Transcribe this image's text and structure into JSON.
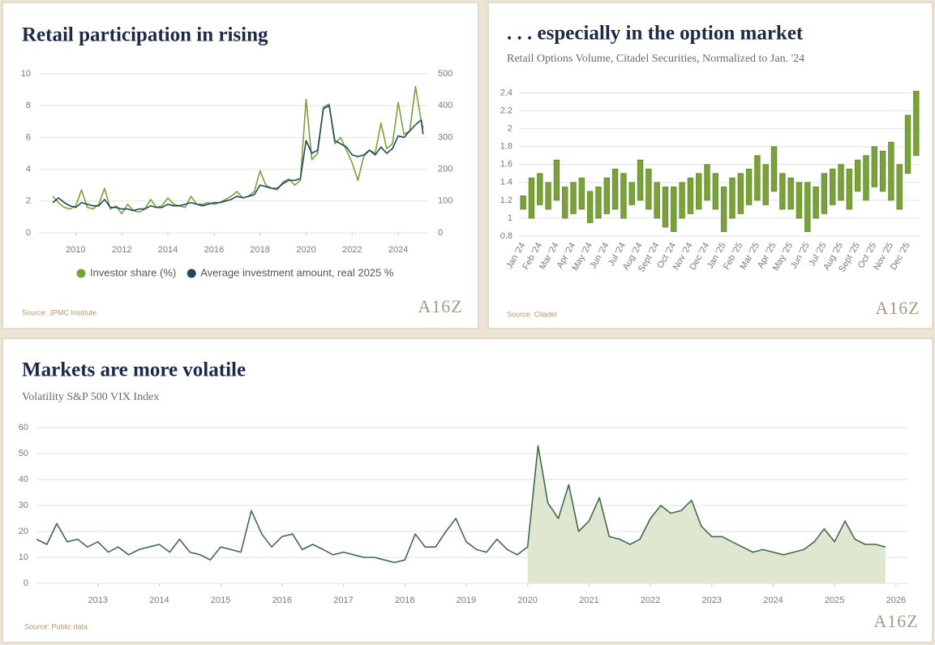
{
  "chart_data": [
    {
      "type": "line",
      "title": "Retail participation in rising",
      "source": "Source: JPMC Institute",
      "logo": "A16Z",
      "x": [
        2009,
        2009.25,
        2009.5,
        2009.75,
        2010,
        2010.25,
        2010.5,
        2010.75,
        2011,
        2011.25,
        2011.5,
        2011.75,
        2012,
        2012.25,
        2012.5,
        2012.75,
        2013,
        2013.25,
        2013.5,
        2013.75,
        2014,
        2014.25,
        2014.5,
        2014.75,
        2015,
        2015.25,
        2015.5,
        2015.75,
        2016,
        2016.25,
        2016.5,
        2016.75,
        2017,
        2017.25,
        2017.5,
        2017.75,
        2018,
        2018.25,
        2018.5,
        2018.75,
        2019,
        2019.25,
        2019.5,
        2019.75,
        2020,
        2020.25,
        2020.5,
        2020.75,
        2021,
        2021.25,
        2021.5,
        2021.75,
        2022,
        2022.25,
        2022.5,
        2022.75,
        2023,
        2023.25,
        2023.5,
        2023.75,
        2024,
        2024.25,
        2024.5,
        2024.75,
        2025,
        2025.08
      ],
      "series": [
        {
          "name": "Investor share (%)",
          "color": "#7ba13a",
          "values": [
            2.3,
            1.9,
            1.6,
            1.5,
            1.7,
            2.7,
            1.6,
            1.5,
            1.8,
            2.8,
            1.5,
            1.7,
            1.2,
            1.8,
            1.4,
            1.3,
            1.5,
            2.1,
            1.6,
            1.7,
            2.2,
            1.8,
            1.7,
            1.6,
            2.3,
            1.8,
            1.8,
            1.9,
            1.8,
            1.9,
            2.1,
            2.3,
            2.6,
            2.2,
            2.3,
            2.6,
            3.9,
            3.0,
            2.8,
            2.7,
            3.2,
            3.4,
            3.0,
            3.3,
            8.4,
            4.6,
            5.0,
            7.9,
            8.1,
            5.6,
            6.0,
            5.2,
            4.4,
            3.3,
            4.8,
            5.2,
            5.0,
            6.9,
            5.3,
            5.6,
            8.2,
            6.2,
            6.4,
            9.2,
            7.0,
            6.6
          ]
        },
        {
          "name": "Average investment amount, real 2025 %",
          "color": "#1f4a5e",
          "axis": "y2",
          "values": [
            95,
            110,
            95,
            85,
            80,
            95,
            90,
            85,
            85,
            105,
            80,
            80,
            75,
            75,
            70,
            75,
            75,
            85,
            80,
            80,
            90,
            85,
            85,
            90,
            95,
            90,
            85,
            90,
            95,
            95,
            100,
            105,
            115,
            110,
            115,
            120,
            150,
            145,
            140,
            140,
            155,
            165,
            165,
            170,
            290,
            250,
            260,
            390,
            400,
            290,
            280,
            270,
            245,
            240,
            245,
            260,
            245,
            270,
            250,
            265,
            305,
            300,
            320,
            340,
            355,
            310
          ]
        }
      ],
      "xlim": [
        2008.4,
        2025.3
      ],
      "xticks": [
        2010,
        2012,
        2014,
        2016,
        2018,
        2020,
        2022,
        2024
      ],
      "ylim": [
        0,
        10
      ],
      "yticks": [
        0,
        2,
        4,
        6,
        8,
        10
      ],
      "y2lim": [
        0,
        500
      ],
      "y2ticks": [
        0,
        100,
        200,
        300,
        400,
        500
      ],
      "grid": true,
      "legend": "bottom"
    },
    {
      "type": "range_bar",
      "title": ". . . especially in the option market",
      "subtitle": "Retail Options Volume, Citadel Securities, Normalized to Jan. '24",
      "source": "Source: Citadel",
      "logo": "A16Z",
      "categories": [
        "Jan '24",
        null,
        "Feb '24",
        null,
        "Mar '24",
        null,
        "Apr '24",
        null,
        "May '24",
        null,
        "Jun '24",
        null,
        "Jul '24",
        null,
        "Aug '24",
        null,
        "Sept '24",
        null,
        "Oct '24",
        null,
        "Nov '24",
        null,
        "Dec '24",
        null,
        "Jan '25",
        null,
        "Feb '25",
        null,
        "Mar '25",
        null,
        "Apr '25",
        null,
        "May '25",
        null,
        "Jun '25",
        null,
        "Jul '25",
        null,
        "Aug '25",
        null,
        "Sept '25",
        null,
        "Oct '25",
        null,
        "Nov '25",
        null,
        "Dec '25",
        null
      ],
      "low": [
        1.1,
        1.0,
        1.15,
        1.1,
        1.2,
        1.0,
        1.05,
        1.1,
        0.95,
        1.0,
        1.05,
        1.1,
        1.0,
        1.15,
        1.2,
        1.1,
        1.0,
        0.9,
        0.85,
        1.0,
        1.05,
        1.1,
        1.2,
        1.1,
        0.85,
        1.0,
        1.05,
        1.15,
        1.2,
        1.15,
        1.3,
        1.1,
        1.1,
        1.0,
        0.85,
        1.0,
        1.05,
        1.15,
        1.2,
        1.1,
        1.3,
        1.2,
        1.35,
        1.3,
        1.2,
        1.1,
        1.5,
        1.7
      ],
      "high": [
        1.25,
        1.45,
        1.5,
        1.4,
        1.65,
        1.35,
        1.4,
        1.45,
        1.3,
        1.35,
        1.45,
        1.55,
        1.5,
        1.4,
        1.65,
        1.55,
        1.4,
        1.35,
        1.35,
        1.4,
        1.45,
        1.5,
        1.6,
        1.5,
        1.35,
        1.45,
        1.5,
        1.55,
        1.7,
        1.6,
        1.8,
        1.5,
        1.45,
        1.4,
        1.4,
        1.35,
        1.5,
        1.55,
        1.6,
        1.55,
        1.65,
        1.7,
        1.8,
        1.75,
        1.85,
        1.6,
        2.15,
        2.42
      ],
      "color": "#7ba13a",
      "ylim": [
        0.8,
        2.45
      ],
      "yticks": [
        0.8,
        1,
        1.2,
        1.4,
        1.6,
        1.8,
        2,
        2.2,
        2.4
      ],
      "grid": true
    },
    {
      "type": "line",
      "title": "Markets are more volatile",
      "subtitle": "Volatility S&P 500 VIX Index",
      "source": "Source: Public data",
      "logo": "A16Z",
      "x": [
        2012,
        2012.17,
        2012.33,
        2012.5,
        2012.67,
        2012.83,
        2013,
        2013.17,
        2013.33,
        2013.5,
        2013.67,
        2013.83,
        2014,
        2014.17,
        2014.33,
        2014.5,
        2014.67,
        2014.83,
        2015,
        2015.17,
        2015.33,
        2015.5,
        2015.67,
        2015.83,
        2016,
        2016.17,
        2016.33,
        2016.5,
        2016.67,
        2016.83,
        2017,
        2017.17,
        2017.33,
        2017.5,
        2017.67,
        2017.83,
        2018,
        2018.17,
        2018.33,
        2018.5,
        2018.67,
        2018.83,
        2019,
        2019.17,
        2019.33,
        2019.5,
        2019.67,
        2019.83,
        2020,
        2020.17,
        2020.33,
        2020.5,
        2020.67,
        2020.83,
        2021,
        2021.17,
        2021.33,
        2021.5,
        2021.67,
        2021.83,
        2022,
        2022.17,
        2022.33,
        2022.5,
        2022.67,
        2022.83,
        2023,
        2023.17,
        2023.33,
        2023.5,
        2023.67,
        2023.83,
        2024,
        2024.17,
        2024.33,
        2024.5,
        2024.67,
        2024.83,
        2025,
        2025.17,
        2025.33,
        2025.5,
        2025.67,
        2025.83
      ],
      "values": [
        17,
        15,
        23,
        16,
        17,
        14,
        16,
        12,
        14,
        11,
        13,
        14,
        15,
        12,
        17,
        12,
        11,
        9,
        14,
        13,
        12,
        28,
        19,
        14,
        18,
        19,
        13,
        15,
        13,
        11,
        12,
        11,
        10,
        10,
        9,
        8,
        9,
        19,
        14,
        14,
        20,
        25,
        16,
        13,
        12,
        17,
        13,
        11,
        14,
        53,
        31,
        25,
        38,
        20,
        24,
        33,
        18,
        17,
        15,
        17,
        25,
        30,
        27,
        28,
        32,
        22,
        18,
        18,
        16,
        14,
        12,
        13,
        12,
        11,
        12,
        13,
        16,
        21,
        16,
        24,
        17,
        15,
        15,
        14
      ],
      "color": "#3f6b4f",
      "shade_color": "#dfe7d0",
      "shaded_xlim": [
        2020,
        2025.83
      ],
      "xlim": [
        2012,
        2026.2
      ],
      "xticks": [
        2013,
        2014,
        2015,
        2016,
        2017,
        2018,
        2019,
        2020,
        2021,
        2022,
        2023,
        2024,
        2025,
        2026
      ],
      "ylim": [
        0,
        60
      ],
      "yticks": [
        0,
        10,
        20,
        30,
        40,
        50,
        60
      ],
      "grid": true
    }
  ]
}
